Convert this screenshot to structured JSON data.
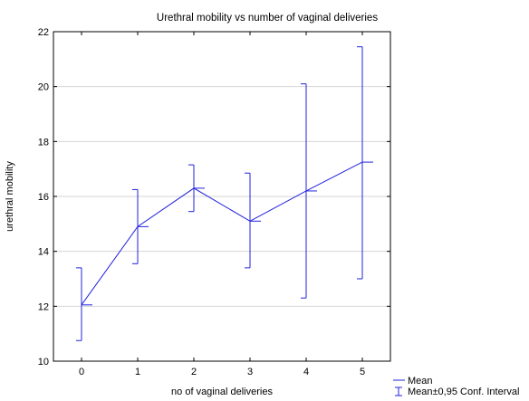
{
  "chart_data": {
    "type": "line",
    "title": "Urethral mobility vs number of vaginal deliveries",
    "xlabel": "no of vaginal deliveries",
    "ylabel": "urethral mobility",
    "x": [
      0,
      1,
      2,
      3,
      4,
      5
    ],
    "categories": [
      "0",
      "1",
      "2",
      "3",
      "4",
      "5"
    ],
    "ylim": [
      10,
      22
    ],
    "yticks": [
      10,
      12,
      14,
      16,
      18,
      20,
      22
    ],
    "grid": true,
    "series": [
      {
        "name": "Mean",
        "values": [
          12.05,
          14.9,
          16.3,
          15.1,
          16.2,
          17.25
        ],
        "ci_lower": [
          10.75,
          13.55,
          15.45,
          13.4,
          12.3,
          13.0
        ],
        "ci_upper": [
          13.4,
          16.25,
          17.15,
          16.85,
          20.1,
          21.45
        ]
      }
    ],
    "legend": {
      "placement": "bottom-right",
      "entries": [
        "Mean",
        "Mean±0,95 Conf. Interval"
      ]
    },
    "colors": {
      "series": "#2222dd",
      "grid": "#d4d4d4",
      "axis": "#000000"
    }
  }
}
